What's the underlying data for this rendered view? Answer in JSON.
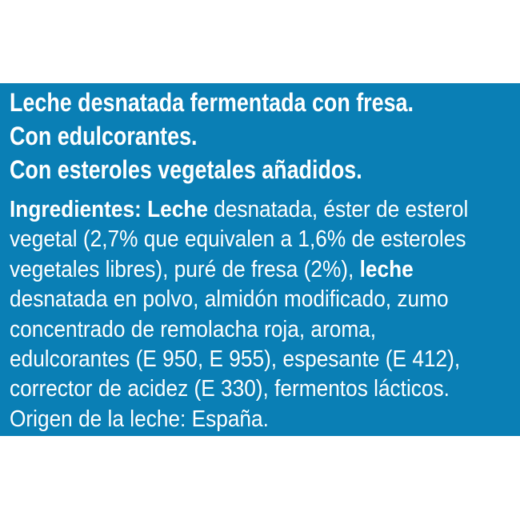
{
  "panel_color": "#0a7fb5",
  "headings": [
    "Leche desnatada fermentada con fresa.",
    "Con edulcorantes.",
    "Con esteroles vegetales añadidos."
  ],
  "ingredients_lines": [
    [
      {
        "t": "Ingredientes: Leche",
        "b": true
      },
      {
        "t": " desnatada, éster de esterol",
        "b": false
      }
    ],
    [
      {
        "t": "vegetal (2,7% que equivalen a 1,6% de esteroles",
        "b": false
      }
    ],
    [
      {
        "t": "vegetales libres), puré de fresa (2%), ",
        "b": false
      },
      {
        "t": "leche",
        "b": true
      }
    ],
    [
      {
        "t": "desnatada en polvo, almidón modificado, zumo",
        "b": false
      }
    ],
    [
      {
        "t": "concentrado de remolacha roja, aroma,",
        "b": false
      }
    ],
    [
      {
        "t": "edulcorantes (E 950, E 955), espesante (E 412),",
        "b": false
      }
    ],
    [
      {
        "t": "corrector de acidez (E 330), fermentos lácticos.",
        "b": false
      }
    ],
    [
      {
        "t": "Origen de la leche: España.",
        "b": false
      }
    ]
  ]
}
